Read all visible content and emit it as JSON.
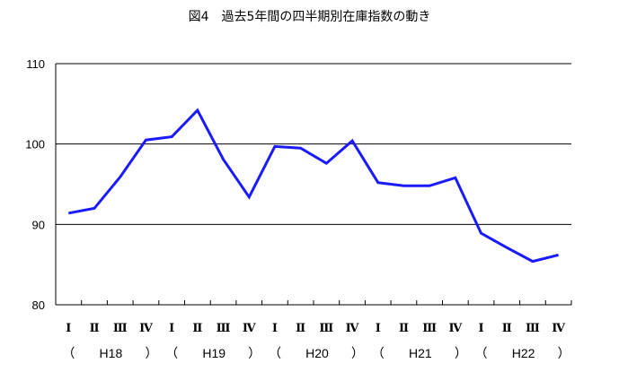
{
  "chart_data": {
    "type": "line",
    "title": "図4　過去5年間の四半期別在庫指数の動き",
    "xlabel": "",
    "ylabel": "",
    "ylim": [
      80,
      110
    ],
    "yticks": [
      "80",
      "90",
      "100",
      "110"
    ],
    "grid": true,
    "quarter_labels": [
      "Ⅰ",
      "Ⅱ",
      "Ⅲ",
      "Ⅳ",
      "Ⅰ",
      "Ⅱ",
      "Ⅲ",
      "Ⅳ",
      "Ⅰ",
      "Ⅱ",
      "Ⅲ",
      "Ⅳ",
      "Ⅰ",
      "Ⅱ",
      "Ⅲ",
      "Ⅳ",
      "Ⅰ",
      "Ⅱ",
      "Ⅲ",
      "Ⅳ"
    ],
    "year_groups": [
      "H18",
      "H19",
      "H20",
      "H21",
      "H22"
    ],
    "paren_open": "（",
    "paren_close": "）",
    "line_color": "#1a1aff",
    "series": [
      {
        "values": [
          91.4,
          92.0,
          95.9,
          100.5,
          100.9,
          104.2,
          98.1,
          93.4,
          99.7,
          99.5,
          97.6,
          100.4,
          95.2,
          94.8,
          94.8,
          95.8,
          88.9,
          87.1,
          85.4,
          86.2
        ]
      }
    ]
  }
}
